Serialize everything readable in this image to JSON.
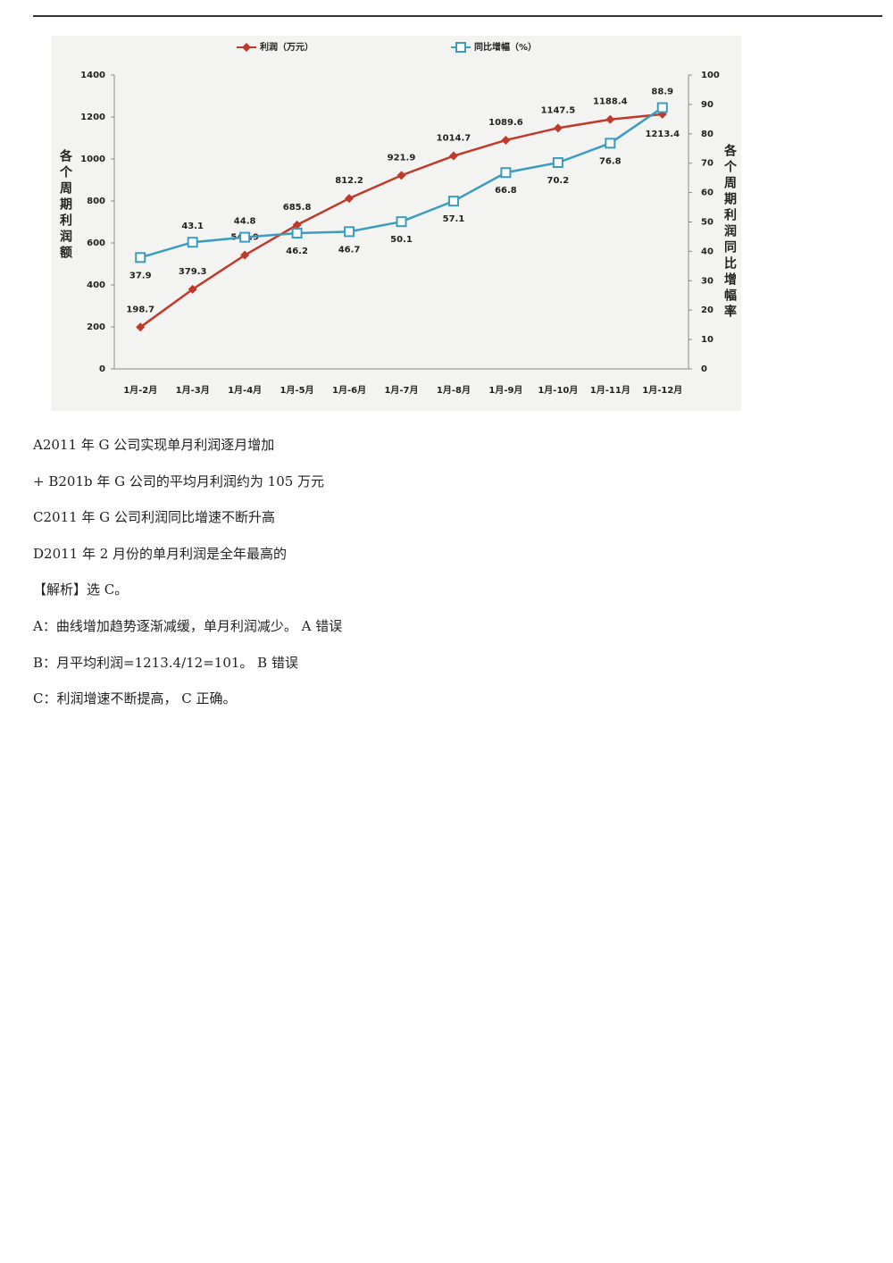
{
  "chart_data": {
    "type": "line",
    "ylabel": "各个周期利润额",
    "y2label": "各个周期利润同比增幅率",
    "categories": [
      "1月-2月",
      "1月-3月",
      "1月-4月",
      "1月-5月",
      "1月-6月",
      "1月-7月",
      "1月-8月",
      "1月-9月",
      "1月-10月",
      "1月-11月",
      "1月-12月"
    ],
    "series": [
      {
        "name": "利润（万元）",
        "color": "#c0392b",
        "marker": "diamond",
        "values": [
          198.7,
          379.3,
          541.9,
          685.8,
          812.2,
          921.9,
          1014.7,
          1089.6,
          1147.5,
          1188.4,
          1213.4
        ]
      },
      {
        "name": "同比增幅（%）",
        "color": "#3b9cc0",
        "marker": "square",
        "axis": "y2",
        "values": [
          37.9,
          43.1,
          44.8,
          46.2,
          46.7,
          50.1,
          57.1,
          66.8,
          70.2,
          76.8,
          88.9
        ]
      }
    ],
    "ylim": [
      0,
      1400
    ],
    "yticks": [
      0,
      200,
      400,
      600,
      800,
      1000,
      1200,
      1400
    ],
    "y2lim": [
      0,
      100
    ],
    "y2ticks": [
      0,
      10,
      20,
      30,
      40,
      50,
      60,
      70,
      80,
      90,
      100
    ],
    "grid": false
  },
  "text": {
    "lines": [
      "A2011 年 G 公司实现单月利润逐月增加",
      "+ B201b 年 G 公司的平均月利润约为 105 万元",
      "C2011 年 G 公司利润同比增速不断升高",
      "D2011 年 2 月份的单月利润是全年最高的",
      "【解析】选 C。",
      "A：曲线增加趋势逐渐减缓，单月利润减少。 A 错误",
      "B：月平均利润=1213.4/12=101。 B 错误",
      "C：利润增速不断提高， C 正确。"
    ]
  }
}
